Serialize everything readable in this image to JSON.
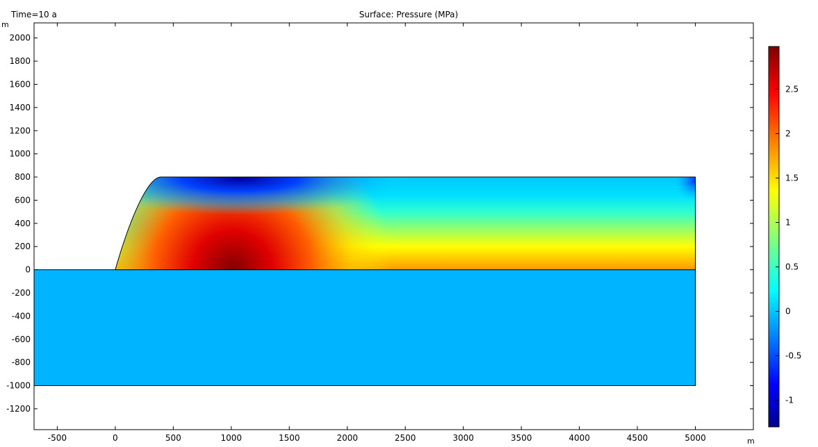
{
  "plot": {
    "time_label": "Time=10 a",
    "title": "Surface: Pressure (MPa)",
    "x_unit": "m",
    "y_unit": "m"
  },
  "chart_data": {
    "type": "heatmap",
    "title": "Surface: Pressure (MPa)",
    "annotation": "Time=10 a",
    "xlabel": "m",
    "ylabel": "m",
    "xlim": [
      -700,
      5500
    ],
    "ylim": [
      -1380,
      2130
    ],
    "x_ticks": [
      -500,
      0,
      500,
      1000,
      1500,
      2000,
      2500,
      3000,
      3500,
      4000,
      4500,
      5000
    ],
    "y_ticks": [
      2000,
      1800,
      1600,
      1400,
      1200,
      1000,
      800,
      600,
      400,
      200,
      0,
      -200,
      -400,
      -600,
      -800,
      -1000,
      -1200
    ],
    "colormap": "jet",
    "color_range": [
      -1.3,
      2.98
    ],
    "colorbar_ticks": [
      2.5,
      2,
      1.5,
      1,
      0.5,
      0,
      -0.5,
      -1
    ],
    "domains": [
      {
        "name": "embankment",
        "outline": [
          [
            0,
            0
          ],
          [
            400,
            800
          ],
          [
            5000,
            800
          ],
          [
            5000,
            0
          ]
        ],
        "peak_value": 2.98,
        "peak_location": [
          1000,
          0
        ],
        "min_value": -1.3,
        "min_location": [
          1000,
          800
        ]
      },
      {
        "name": "foundation",
        "outline": [
          [
            -700,
            0
          ],
          [
            5000,
            0
          ],
          [
            5000,
            -1000
          ],
          [
            -700,
            -1000
          ]
        ],
        "value": 0.2
      }
    ],
    "grid": false,
    "legend": "colorbar right"
  }
}
